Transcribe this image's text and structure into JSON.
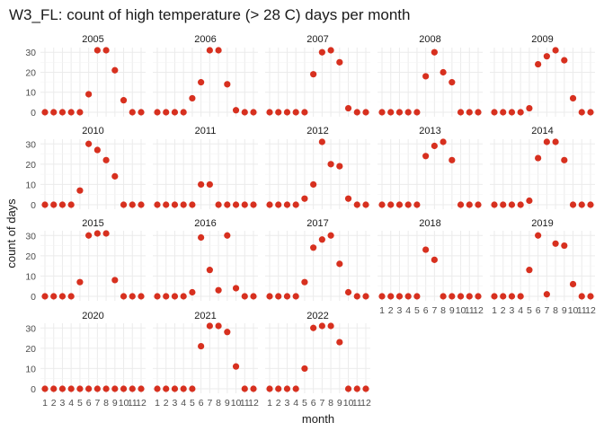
{
  "chart_data": {
    "type": "scatter",
    "title": "W3_FL: count of high temperature (> 28 C) days per month",
    "xlabel": "month",
    "ylabel": "count of days",
    "x_ticks": [
      "1",
      "2",
      "3",
      "4",
      "5",
      "6",
      "7",
      "8",
      "9",
      "10",
      "11",
      "12"
    ],
    "y_ticks": [
      0,
      10,
      20,
      30
    ],
    "ylim": [
      0,
      31
    ],
    "grid": true,
    "point_color": "#d7301f",
    "panels": [
      {
        "year": "2005",
        "values": [
          0,
          0,
          0,
          0,
          0,
          9,
          31,
          31,
          21,
          6,
          0,
          0
        ]
      },
      {
        "year": "2006",
        "values": [
          0,
          0,
          0,
          0,
          7,
          15,
          31,
          31,
          14,
          1,
          0,
          0
        ]
      },
      {
        "year": "2007",
        "values": [
          0,
          0,
          0,
          0,
          0,
          19,
          30,
          31,
          25,
          2,
          0,
          0
        ]
      },
      {
        "year": "2008",
        "values": [
          0,
          0,
          0,
          0,
          0,
          18,
          30,
          20,
          15,
          0,
          0,
          0
        ]
      },
      {
        "year": "2009",
        "values": [
          0,
          0,
          0,
          0,
          2,
          24,
          28,
          31,
          26,
          7,
          0,
          0
        ]
      },
      {
        "year": "2010",
        "values": [
          0,
          0,
          0,
          0,
          7,
          30,
          27,
          22,
          14,
          0,
          0,
          0
        ]
      },
      {
        "year": "2011",
        "values": [
          0,
          0,
          0,
          0,
          0,
          10,
          10,
          0,
          0,
          0,
          0,
          0
        ]
      },
      {
        "year": "2012",
        "values": [
          0,
          0,
          0,
          0,
          3,
          10,
          31,
          20,
          19,
          3,
          0,
          0
        ]
      },
      {
        "year": "2013",
        "values": [
          0,
          0,
          0,
          0,
          0,
          24,
          29,
          31,
          22,
          0,
          0,
          0
        ]
      },
      {
        "year": "2014",
        "values": [
          0,
          0,
          0,
          0,
          2,
          23,
          31,
          31,
          22,
          0,
          0,
          0
        ]
      },
      {
        "year": "2015",
        "values": [
          0,
          0,
          0,
          0,
          7,
          30,
          31,
          31,
          8,
          0,
          0,
          0
        ]
      },
      {
        "year": "2016",
        "values": [
          0,
          0,
          0,
          0,
          2,
          29,
          13,
          3,
          30,
          4,
          0,
          0
        ]
      },
      {
        "year": "2017",
        "values": [
          0,
          0,
          0,
          0,
          7,
          24,
          28,
          30,
          16,
          2,
          0,
          0
        ]
      },
      {
        "year": "2018",
        "values": [
          0,
          0,
          0,
          0,
          0,
          23,
          18,
          0,
          0,
          0,
          0,
          0
        ]
      },
      {
        "year": "2019",
        "values": [
          0,
          0,
          0,
          0,
          13,
          30,
          1,
          26,
          25,
          6,
          0,
          0
        ]
      },
      {
        "year": "2020",
        "values": [
          0,
          0,
          0,
          0,
          0,
          0,
          0,
          0,
          0,
          0,
          0,
          0
        ]
      },
      {
        "year": "2021",
        "values": [
          0,
          0,
          0,
          0,
          0,
          21,
          31,
          31,
          28,
          11,
          0,
          0
        ]
      },
      {
        "year": "2022",
        "values": [
          0,
          0,
          0,
          0,
          10,
          30,
          31,
          31,
          23,
          0,
          0,
          0
        ]
      }
    ]
  }
}
